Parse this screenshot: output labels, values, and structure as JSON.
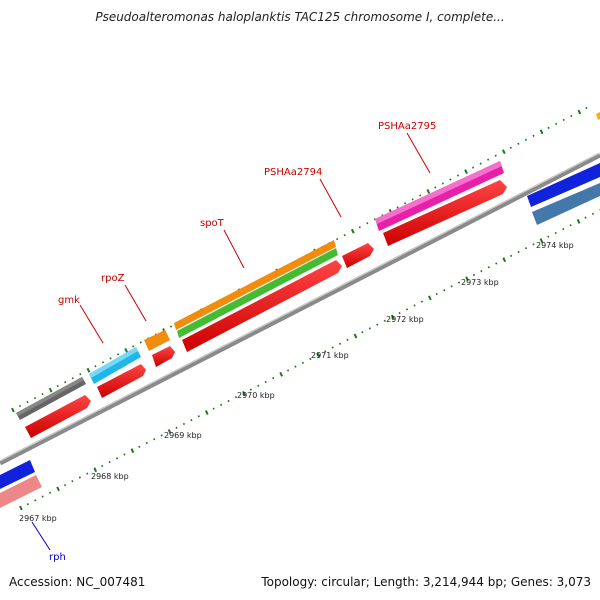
{
  "header": {
    "title": "Pseudoalteromonas haloplanktis TAC125 chromosome I, complete..."
  },
  "footer": {
    "accession_label": "Accession:",
    "accession_value": "NC_007481",
    "topology_label": "Topology:",
    "topology_value": "circular",
    "length_label": "Length:",
    "length_value": "3,214,944 bp",
    "genes_label": "Genes:",
    "genes_value": "3,073"
  },
  "scale": {
    "ticks": [
      "2967 kbp",
      "2968 kbp",
      "2969 kbp",
      "2970 kbp",
      "2971 kbp",
      "2972 kbp",
      "2973 kbp",
      "2974 kbp"
    ]
  },
  "genes": [
    {
      "label": "gmk",
      "color": "#cc0000"
    },
    {
      "label": "rpoZ",
      "color": "#cc0000"
    },
    {
      "label": "spoT",
      "color": "#cc0000"
    },
    {
      "label": "PSHAa2794",
      "color": "#cc0000"
    },
    {
      "label": "PSHAa2795",
      "color": "#cc0000"
    },
    {
      "label": "rph",
      "color": "#0000cc"
    }
  ],
  "colors": {
    "cds": "#ee1111",
    "backbone": "#8a8a8a",
    "tick": "#1a7a1a",
    "gray_feature": "#666666",
    "cyan_feature": "#1fb6e8",
    "orange_feature": "#f28c0c",
    "green_feature": "#44bb33",
    "magenta_feature": "#e81fa8",
    "blue_feature": "#1122dd",
    "steelblue_feature": "#4477aa",
    "pink_feature": "#ee8888"
  }
}
